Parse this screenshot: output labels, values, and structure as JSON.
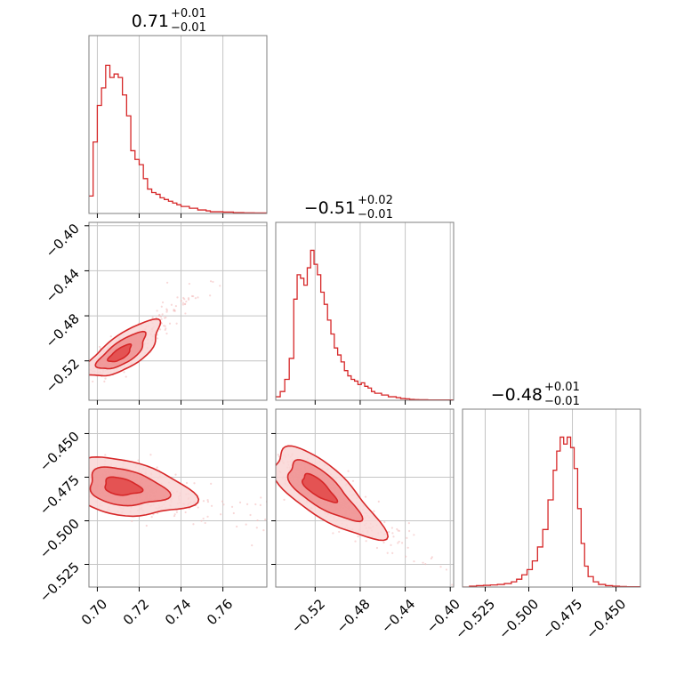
{
  "chart_data": {
    "type": "corner",
    "color": "#d62728",
    "parameters": [
      {
        "title_value": "0.71",
        "err_plus": "+0.01",
        "err_minus": "−0.01",
        "range": [
          0.696,
          0.781
        ],
        "ticks": [
          0.7,
          0.72,
          0.74,
          0.76
        ],
        "tick_labels": [
          "0.70",
          "0.72",
          "0.74",
          "0.76"
        ]
      },
      {
        "title_value": "−0.51",
        "err_plus": "+0.02",
        "err_minus": "−0.01",
        "range": [
          -0.555,
          -0.397
        ],
        "ticks": [
          -0.52,
          -0.48,
          -0.44,
          -0.4
        ],
        "tick_labels": [
          "−0.52",
          "−0.48",
          "−0.44",
          "−0.40"
        ]
      },
      {
        "title_value": "−0.48",
        "err_plus": "+0.01",
        "err_minus": "−0.01",
        "range": [
          -0.538,
          -0.436
        ],
        "ticks": [
          -0.525,
          -0.5,
          -0.475,
          -0.45
        ],
        "tick_labels": [
          "−0.525",
          "−0.500",
          "−0.475",
          "−0.450"
        ]
      }
    ],
    "histograms": [
      {
        "param": 0,
        "bins": [
          [
            0.696,
            0.1
          ],
          [
            0.698,
            0.41
          ],
          [
            0.7,
            0.62
          ],
          [
            0.702,
            0.72
          ],
          [
            0.704,
            0.85
          ],
          [
            0.706,
            0.78
          ],
          [
            0.708,
            0.8
          ],
          [
            0.71,
            0.78
          ],
          [
            0.712,
            0.68
          ],
          [
            0.714,
            0.56
          ],
          [
            0.716,
            0.36
          ],
          [
            0.718,
            0.31
          ],
          [
            0.72,
            0.28
          ],
          [
            0.722,
            0.2
          ],
          [
            0.724,
            0.14
          ],
          [
            0.726,
            0.12
          ],
          [
            0.728,
            0.11
          ],
          [
            0.73,
            0.09
          ],
          [
            0.732,
            0.08
          ],
          [
            0.734,
            0.07
          ],
          [
            0.736,
            0.06
          ],
          [
            0.738,
            0.05
          ],
          [
            0.74,
            0.04
          ],
          [
            0.742,
            0.04
          ],
          [
            0.744,
            0.03
          ],
          [
            0.746,
            0.03
          ],
          [
            0.748,
            0.02
          ],
          [
            0.75,
            0.02
          ],
          [
            0.752,
            0.015
          ],
          [
            0.754,
            0.01
          ],
          [
            0.756,
            0.01
          ],
          [
            0.76,
            0.008
          ],
          [
            0.765,
            0.005
          ],
          [
            0.77,
            0.004
          ],
          [
            0.775,
            0.003
          ]
        ]
      },
      {
        "param": 1,
        "bins": [
          [
            -0.555,
            0.02
          ],
          [
            -0.551,
            0.05
          ],
          [
            -0.547,
            0.12
          ],
          [
            -0.543,
            0.24
          ],
          [
            -0.539,
            0.58
          ],
          [
            -0.536,
            0.72
          ],
          [
            -0.533,
            0.7
          ],
          [
            -0.53,
            0.66
          ],
          [
            -0.527,
            0.76
          ],
          [
            -0.524,
            0.86
          ],
          [
            -0.521,
            0.78
          ],
          [
            -0.518,
            0.72
          ],
          [
            -0.515,
            0.62
          ],
          [
            -0.512,
            0.55
          ],
          [
            -0.509,
            0.46
          ],
          [
            -0.506,
            0.38
          ],
          [
            -0.503,
            0.3
          ],
          [
            -0.5,
            0.26
          ],
          [
            -0.497,
            0.22
          ],
          [
            -0.494,
            0.17
          ],
          [
            -0.491,
            0.14
          ],
          [
            -0.488,
            0.12
          ],
          [
            -0.485,
            0.11
          ],
          [
            -0.482,
            0.09
          ],
          [
            -0.479,
            0.1
          ],
          [
            -0.476,
            0.08
          ],
          [
            -0.473,
            0.07
          ],
          [
            -0.47,
            0.05
          ],
          [
            -0.467,
            0.04
          ],
          [
            -0.464,
            0.04
          ],
          [
            -0.461,
            0.03
          ],
          [
            -0.458,
            0.03
          ],
          [
            -0.455,
            0.02
          ],
          [
            -0.452,
            0.02
          ],
          [
            -0.448,
            0.015
          ],
          [
            -0.444,
            0.01
          ],
          [
            -0.44,
            0.008
          ],
          [
            -0.436,
            0.005
          ],
          [
            -0.432,
            0.004
          ],
          [
            -0.428,
            0.003
          ],
          [
            -0.42,
            0.002
          ]
        ]
      },
      {
        "param": 2,
        "bins": [
          [
            -0.538,
            0.0
          ],
          [
            -0.534,
            0.005
          ],
          [
            -0.53,
            0.008
          ],
          [
            -0.526,
            0.01
          ],
          [
            -0.522,
            0.012
          ],
          [
            -0.518,
            0.015
          ],
          [
            -0.514,
            0.02
          ],
          [
            -0.51,
            0.03
          ],
          [
            -0.507,
            0.045
          ],
          [
            -0.504,
            0.07
          ],
          [
            -0.501,
            0.1
          ],
          [
            -0.498,
            0.15
          ],
          [
            -0.495,
            0.23
          ],
          [
            -0.492,
            0.33
          ],
          [
            -0.489,
            0.5
          ],
          [
            -0.486,
            0.67
          ],
          [
            -0.484,
            0.78
          ],
          [
            -0.482,
            0.86
          ],
          [
            -0.48,
            0.82
          ],
          [
            -0.478,
            0.86
          ],
          [
            -0.476,
            0.8
          ],
          [
            -0.474,
            0.68
          ],
          [
            -0.472,
            0.45
          ],
          [
            -0.47,
            0.25
          ],
          [
            -0.468,
            0.12
          ],
          [
            -0.466,
            0.06
          ],
          [
            -0.463,
            0.03
          ],
          [
            -0.46,
            0.015
          ],
          [
            -0.456,
            0.008
          ],
          [
            -0.452,
            0.005
          ],
          [
            -0.448,
            0.003
          ],
          [
            -0.444,
            0.002
          ]
        ]
      }
    ],
    "pairs": [
      {
        "x_param": 0,
        "y_param": 1,
        "center": [
          0.71,
          -0.515
        ],
        "slope": 1.55,
        "spread_along": 0.01,
        "spread_across": 0.004
      },
      {
        "x_param": 0,
        "y_param": 2,
        "center": [
          0.71,
          -0.48
        ],
        "slope": -0.25,
        "spread_along": 0.01,
        "spread_across": 0.006
      },
      {
        "x_param": 1,
        "y_param": 2,
        "center": [
          -0.52,
          -0.48
        ],
        "slope": -0.45,
        "spread_along": 0.018,
        "spread_across": 0.006
      }
    ],
    "grid": true,
    "xlabel": "",
    "ylabel": ""
  }
}
